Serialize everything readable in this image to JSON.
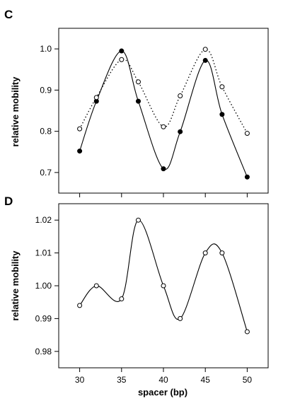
{
  "chart_data": [
    {
      "type": "line",
      "panel_label": "C",
      "ylabel": "relative mobility",
      "xlabel": "",
      "xlim": [
        27.5,
        52.5
      ],
      "ylim": [
        0.65,
        1.05
      ],
      "x_ticks": [
        30,
        35,
        40,
        45,
        50
      ],
      "y_ticks": [
        "0.7",
        "0.8",
        "0.9",
        "1.0"
      ],
      "grid": false,
      "series": [
        {
          "marker": "filled-circle",
          "line": "solid",
          "x": [
            30,
            32,
            35,
            37,
            40,
            42,
            45,
            47,
            50
          ],
          "y": [
            0.752,
            0.873,
            0.995,
            0.873,
            0.709,
            0.799,
            0.972,
            0.841,
            0.689
          ]
        },
        {
          "marker": "open-circle",
          "line": "dotted",
          "x": [
            30,
            32,
            35,
            37,
            40,
            42,
            45,
            47,
            50
          ],
          "y": [
            0.806,
            0.882,
            0.974,
            0.92,
            0.811,
            0.886,
            0.999,
            0.908,
            0.795
          ]
        }
      ]
    },
    {
      "type": "line",
      "panel_label": "D",
      "ylabel": "relative mobility",
      "xlabel": "spacer (bp)",
      "xlim": [
        27.5,
        52.5
      ],
      "ylim": [
        0.975,
        1.025
      ],
      "x_ticks": [
        30,
        35,
        40,
        45,
        50
      ],
      "y_ticks": [
        "0.98",
        "0.99",
        "1.00",
        "1.01",
        "1.02"
      ],
      "grid": false,
      "series": [
        {
          "marker": "open-circle",
          "line": "solid",
          "x": [
            30,
            32,
            35,
            37,
            40,
            42,
            45,
            47,
            50
          ],
          "y": [
            0.994,
            1.0,
            0.996,
            1.02,
            1.0,
            0.99,
            1.01,
            1.01,
            0.986
          ]
        }
      ]
    }
  ]
}
